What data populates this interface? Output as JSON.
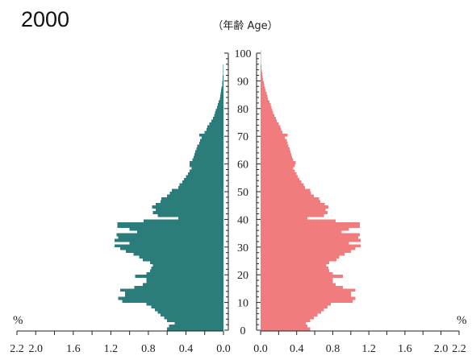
{
  "chart_data": {
    "type": "bar",
    "title": "2000",
    "age_axis_label": "（年齢 Age）",
    "x_unit_label": "%",
    "age_ticks": [
      "0",
      "10",
      "20",
      "30",
      "40",
      "50",
      "60",
      "70",
      "80",
      "90",
      "100"
    ],
    "x_ticks_left": [
      "2.2",
      "2.0",
      "1.6",
      "1.2",
      "0.8",
      "0.4",
      "0.0"
    ],
    "x_ticks_right": [
      "0.0",
      "0.4",
      "0.8",
      "1.2",
      "1.6",
      "2.0",
      "2.2"
    ],
    "x_tick_values_left": [
      2.2,
      2.0,
      1.6,
      1.2,
      0.8,
      0.4,
      0.0
    ],
    "x_tick_values_right": [
      0.0,
      0.4,
      0.8,
      1.2,
      1.6,
      2.0,
      2.2
    ],
    "xlim": [
      0,
      2.2
    ],
    "age_range": [
      0,
      100
    ],
    "colors": {
      "left": "#2a7d7b",
      "right": "#f07c7e"
    },
    "series": [
      {
        "side": "left",
        "values": [
          0.6,
          0.58,
          0.52,
          0.6,
          0.63,
          0.67,
          0.7,
          0.73,
          0.77,
          0.82,
          1.08,
          1.12,
          1.05,
          1.05,
          1.1,
          0.95,
          0.86,
          0.82,
          0.82,
          0.94,
          0.82,
          0.78,
          0.77,
          0.75,
          0.78,
          0.86,
          0.9,
          0.96,
          1.04,
          1.1,
          1.16,
          1.0,
          1.16,
          1.12,
          1.14,
          0.92,
          1.0,
          1.13,
          1.13,
          0.85,
          0.48,
          0.7,
          0.75,
          0.72,
          0.76,
          0.72,
          0.67,
          0.66,
          0.6,
          0.57,
          0.55,
          0.48,
          0.47,
          0.44,
          0.42,
          0.4,
          0.38,
          0.36,
          0.34,
          0.36,
          0.36,
          0.33,
          0.32,
          0.31,
          0.3,
          0.29,
          0.28,
          0.26,
          0.25,
          0.23,
          0.26,
          0.2,
          0.18,
          0.17,
          0.15,
          0.13,
          0.11,
          0.1,
          0.09,
          0.08,
          0.07,
          0.06,
          0.05,
          0.04,
          0.035,
          0.03,
          0.025,
          0.02,
          0.015,
          0.012,
          0.01,
          0.008,
          0.006,
          0.005,
          0.004,
          0.003,
          0.002,
          0.001,
          0,
          0,
          0
        ]
      },
      {
        "side": "right",
        "values": [
          0.55,
          0.52,
          0.5,
          0.55,
          0.59,
          0.63,
          0.67,
          0.7,
          0.74,
          0.78,
          1.02,
          1.05,
          1.0,
          1.0,
          1.05,
          0.91,
          0.83,
          0.8,
          0.8,
          0.91,
          0.8,
          0.76,
          0.75,
          0.73,
          0.76,
          0.84,
          0.87,
          0.93,
          1.0,
          1.05,
          1.11,
          0.98,
          1.11,
          1.08,
          1.1,
          0.9,
          0.98,
          1.1,
          1.1,
          0.83,
          0.52,
          0.7,
          0.74,
          0.72,
          0.75,
          0.71,
          0.66,
          0.65,
          0.59,
          0.56,
          0.55,
          0.49,
          0.48,
          0.45,
          0.43,
          0.41,
          0.4,
          0.38,
          0.36,
          0.38,
          0.39,
          0.36,
          0.35,
          0.34,
          0.33,
          0.32,
          0.31,
          0.3,
          0.29,
          0.27,
          0.3,
          0.24,
          0.23,
          0.22,
          0.2,
          0.18,
          0.17,
          0.15,
          0.14,
          0.13,
          0.12,
          0.11,
          0.1,
          0.08,
          0.075,
          0.065,
          0.055,
          0.05,
          0.04,
          0.035,
          0.028,
          0.022,
          0.018,
          0.014,
          0.01,
          0.008,
          0.006,
          0.004,
          0.003,
          0.002,
          0.001
        ]
      }
    ]
  }
}
